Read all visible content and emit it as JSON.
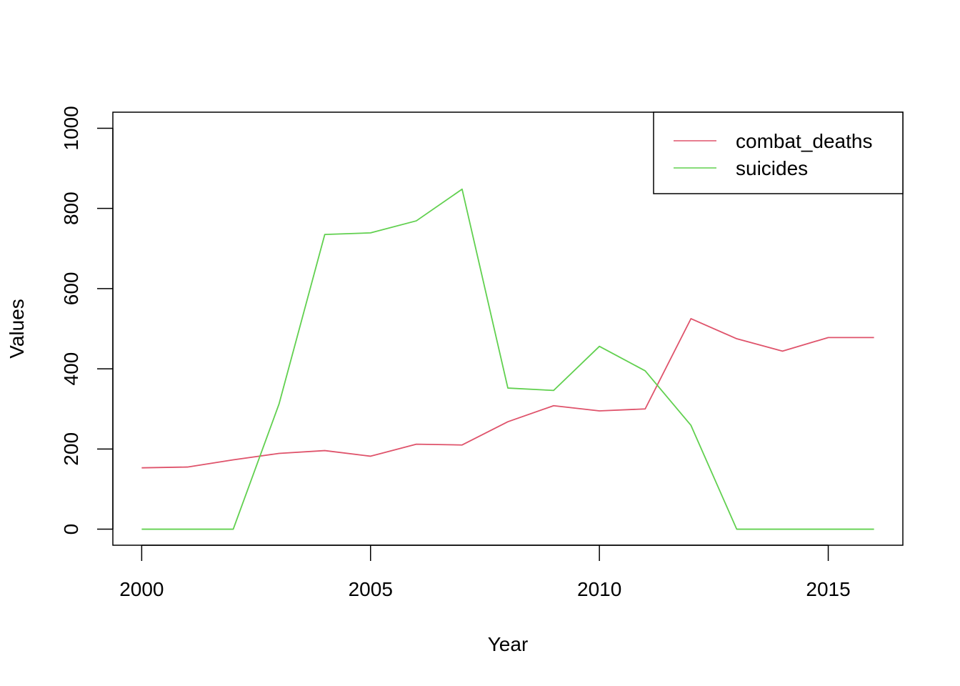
{
  "chart_data": {
    "type": "line",
    "title": "",
    "xlabel": "Year",
    "ylabel": "Values",
    "xlim": [
      1999.37,
      2016.63
    ],
    "ylim": [
      -40,
      1040
    ],
    "x_ticks": [
      2000,
      2005,
      2010,
      2015
    ],
    "y_ticks": [
      0,
      200,
      400,
      600,
      800,
      1000
    ],
    "grid": false,
    "legend_position": "top-right",
    "x": [
      2000,
      2001,
      2002,
      2003,
      2004,
      2005,
      2006,
      2007,
      2008,
      2009,
      2010,
      2011,
      2012,
      2013,
      2014,
      2015,
      2016
    ],
    "series": [
      {
        "name": "combat_deaths",
        "color": "#DF536B",
        "values": [
          153,
          155,
          173,
          189,
          196,
          182,
          212,
          210,
          268,
          308,
          295,
          300,
          525,
          475,
          444,
          478,
          478
        ]
      },
      {
        "name": "suicides",
        "color": "#61D04F",
        "values": [
          0,
          0,
          0,
          312,
          735,
          739,
          769,
          848,
          352,
          346,
          456,
          395,
          259,
          0,
          0,
          0,
          0
        ]
      }
    ]
  }
}
